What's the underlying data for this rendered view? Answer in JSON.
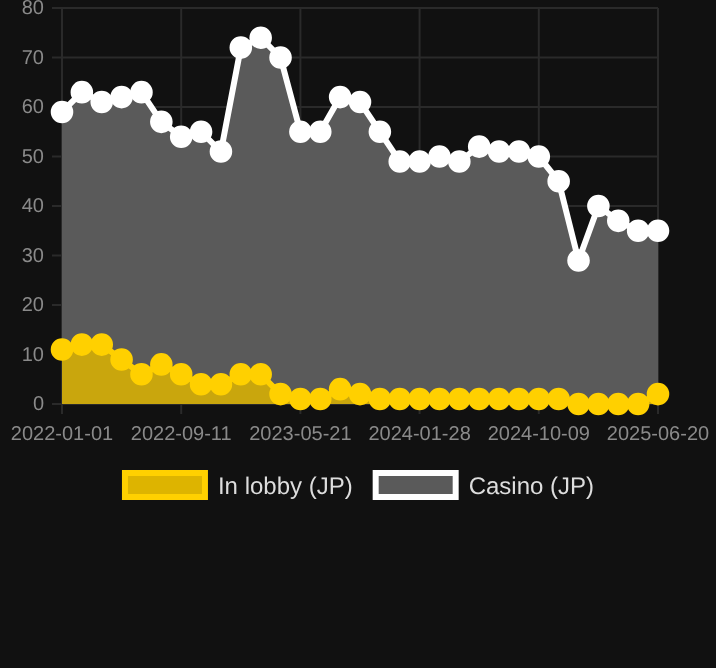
{
  "chart_data": {
    "type": "area",
    "categories": [
      "2022-01-01",
      null,
      null,
      null,
      null,
      null,
      "2022-09-11",
      null,
      null,
      null,
      null,
      null,
      "2023-05-21",
      null,
      null,
      null,
      null,
      null,
      "2024-01-28",
      null,
      null,
      null,
      null,
      null,
      "2024-10-09",
      null,
      null,
      null,
      null,
      null,
      "2025-06-20"
    ],
    "series": [
      {
        "name": "Casino (JP)",
        "color": "#ffffff",
        "values": [
          59,
          63,
          61,
          62,
          63,
          57,
          54,
          55,
          51,
          72,
          74,
          70,
          55,
          55,
          62,
          61,
          55,
          49,
          49,
          50,
          49,
          52,
          51,
          51,
          50,
          45,
          29,
          40,
          37,
          35,
          35
        ]
      },
      {
        "name": "In lobby (JP)",
        "color": "#ffd000",
        "values": [
          11,
          12,
          12,
          9,
          6,
          8,
          6,
          4,
          4,
          6,
          6,
          2,
          1,
          1,
          3,
          2,
          1,
          1,
          1,
          1,
          1,
          1,
          1,
          1,
          1,
          1,
          0,
          0,
          0,
          0,
          2
        ]
      }
    ],
    "ylim": [
      0,
      80
    ],
    "yticks": [
      0,
      10,
      20,
      30,
      40,
      50,
      60,
      70,
      80
    ],
    "grid": true,
    "legend": "bottom",
    "marker": "circle",
    "line_style": "solid"
  }
}
